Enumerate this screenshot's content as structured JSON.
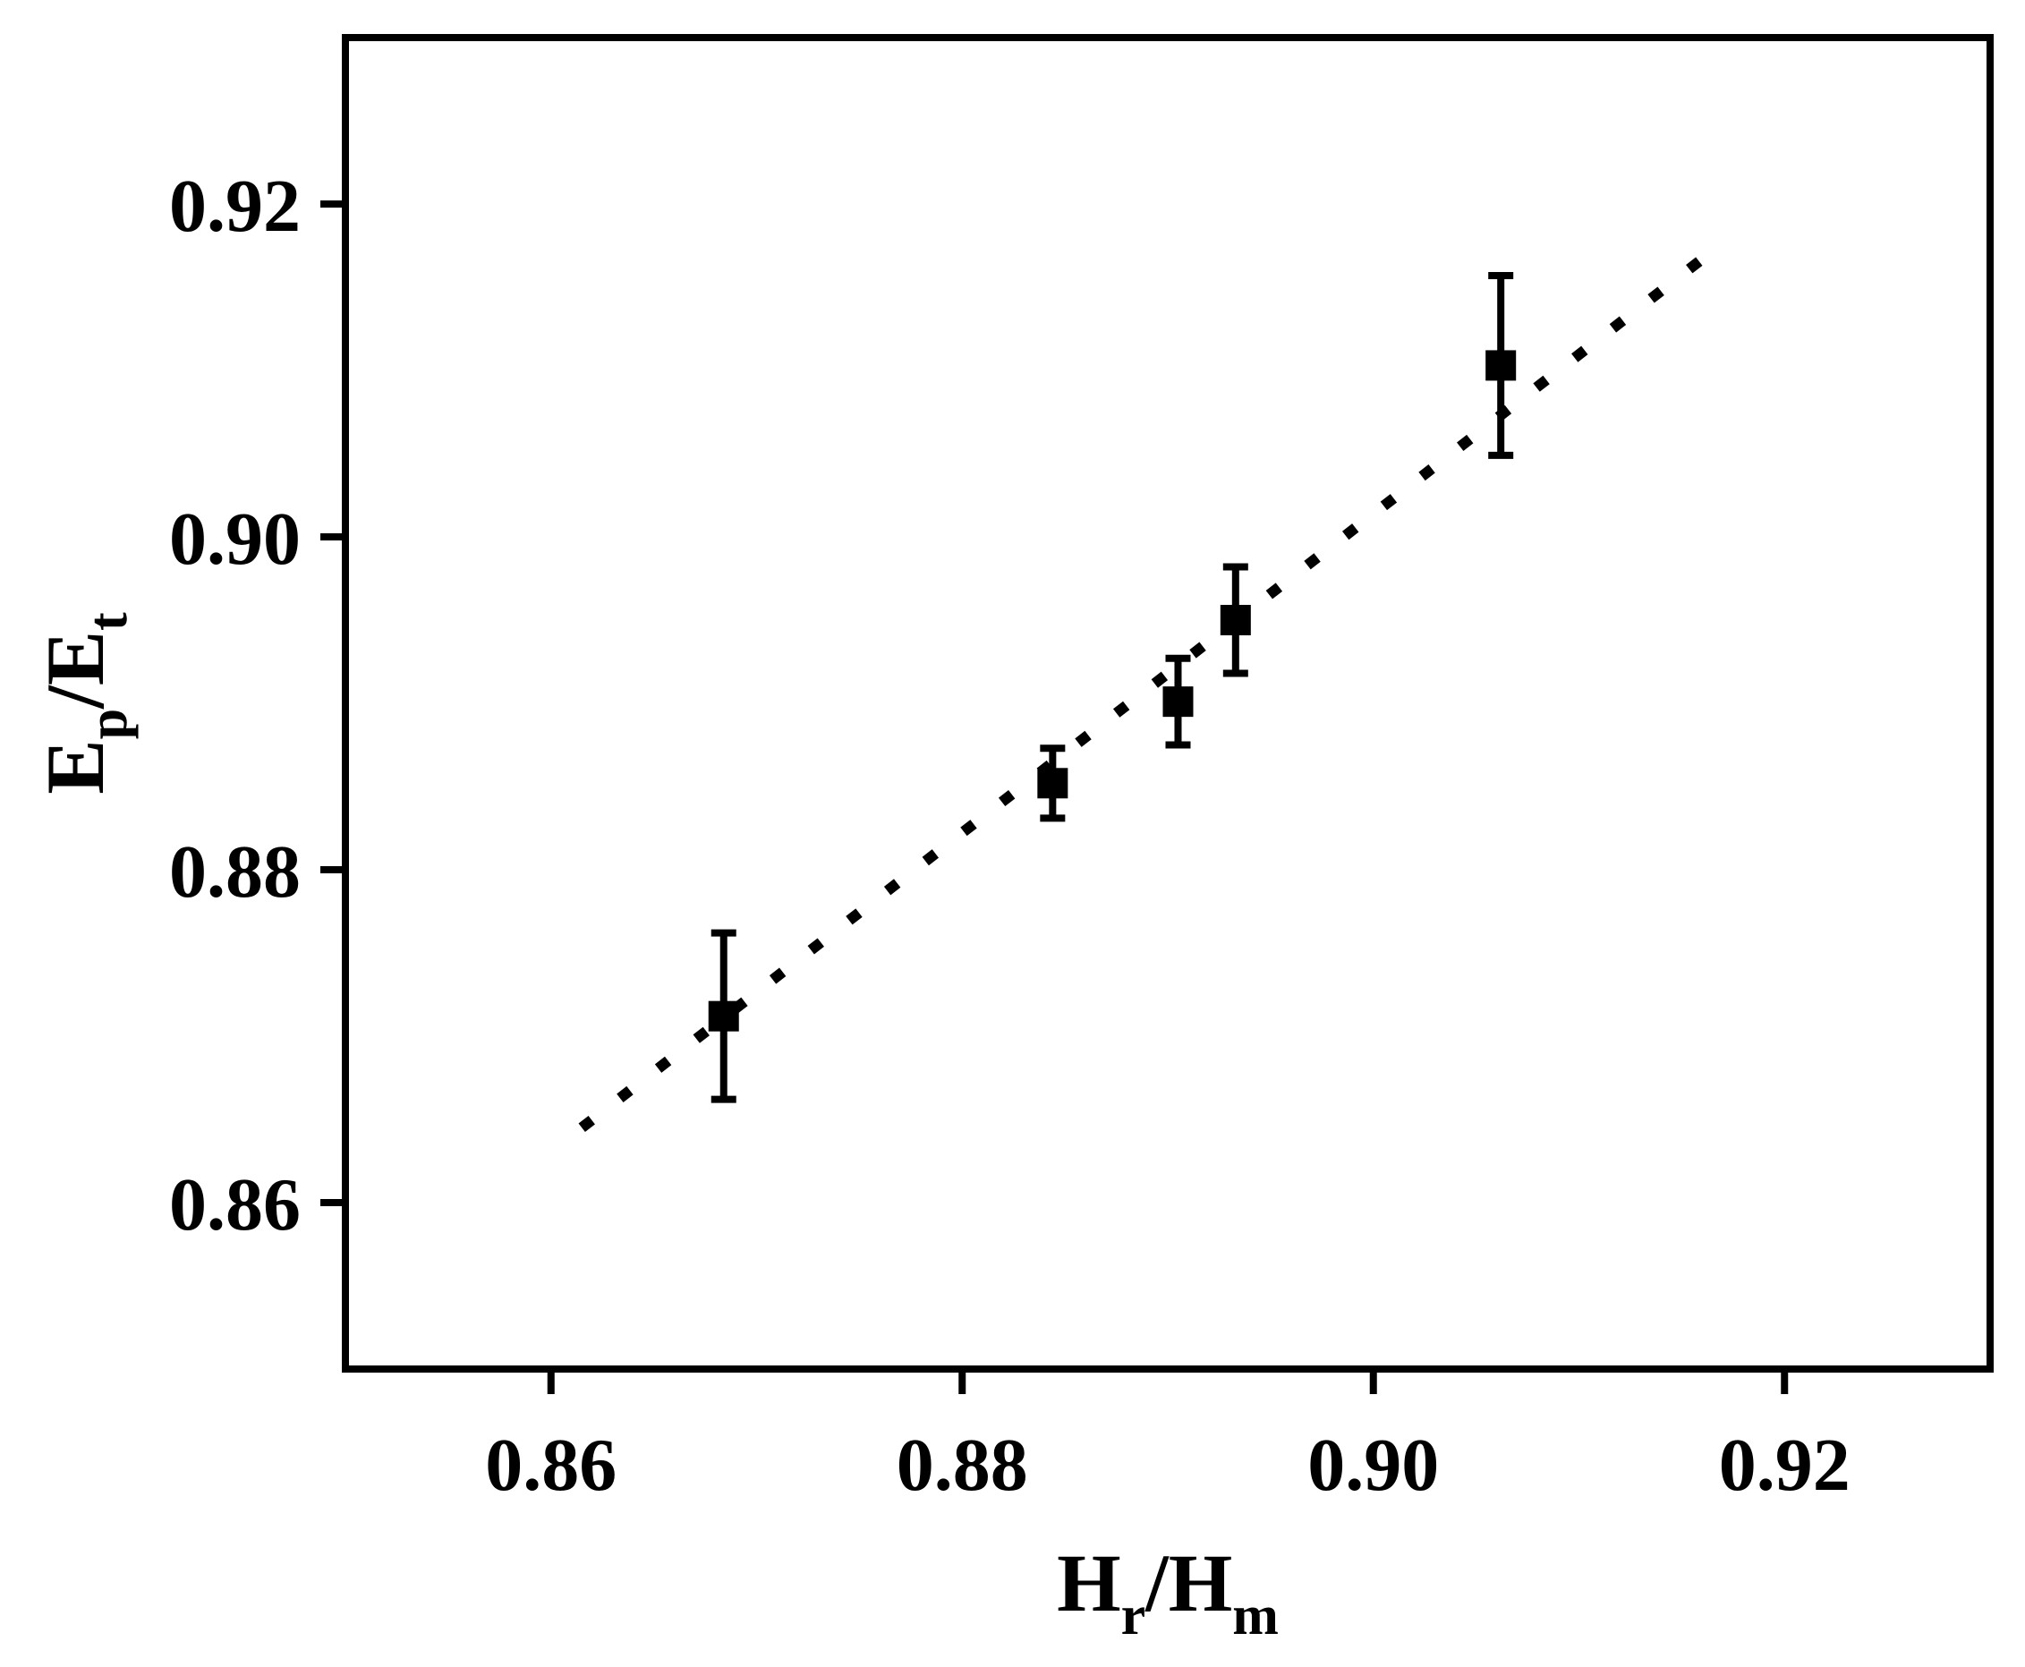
{
  "chart_data": {
    "type": "scatter",
    "title": "",
    "xlabel": {
      "main": "H",
      "sub": "r",
      "sep": "/",
      "main2": "H",
      "sub2": "m"
    },
    "ylabel": {
      "main": "E",
      "sub": "p",
      "sep": "/",
      "main2": "E",
      "sub2": "t"
    },
    "xlim": [
      0.85,
      0.93
    ],
    "ylim": [
      0.85,
      0.93
    ],
    "xticks": [
      0.86,
      0.88,
      0.9,
      0.92
    ],
    "yticks": [
      0.86,
      0.88,
      0.9,
      0.92
    ],
    "xtick_labels": [
      "0.86",
      "0.88",
      "0.90",
      "0.92"
    ],
    "ytick_labels": [
      "0.86",
      "0.88",
      "0.90",
      "0.92"
    ],
    "grid": false,
    "series": [
      {
        "marker": "square",
        "color": "#000000",
        "points": [
          {
            "x": 0.8684,
            "y": 0.8712,
            "err": 0.005
          },
          {
            "x": 0.8844,
            "y": 0.8852,
            "err": 0.0021
          },
          {
            "x": 0.8905,
            "y": 0.8901,
            "err": 0.0026
          },
          {
            "x": 0.8933,
            "y": 0.895,
            "err": 0.0032
          },
          {
            "x": 0.9062,
            "y": 0.9103,
            "err": 0.0054
          }
        ]
      }
    ],
    "fit_line": {
      "style": "dotted",
      "color": "#000000",
      "x": [
        0.8615,
        0.916
      ],
      "y": [
        0.8645,
        0.9167
      ]
    }
  }
}
